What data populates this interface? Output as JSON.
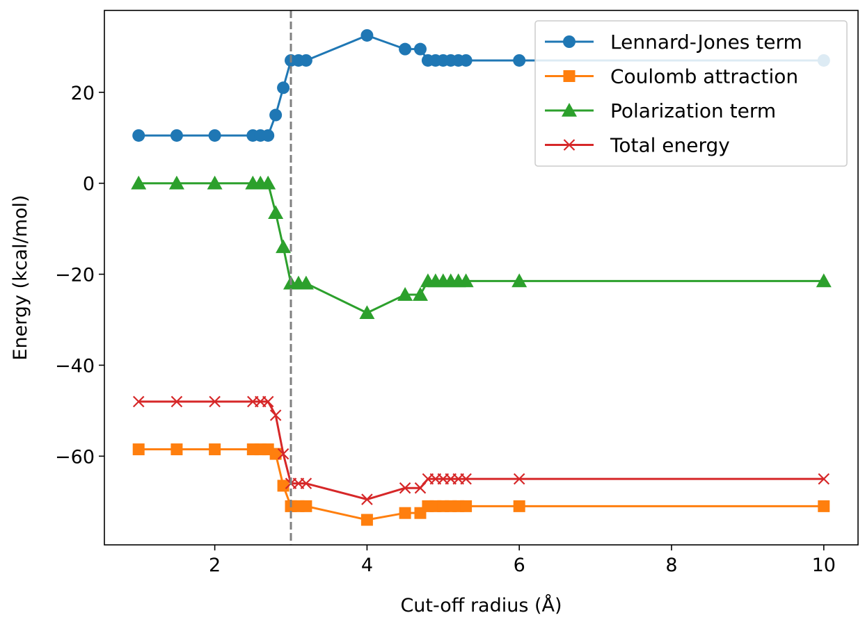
{
  "chart_data": {
    "type": "line",
    "xlabel": "Cut-off radius (Å)",
    "ylabel": "Energy (kcal/mol)",
    "xlim": [
      0.55,
      10.45
    ],
    "ylim": [
      -79.5,
      38
    ],
    "xticks": [
      2,
      4,
      6,
      8,
      10
    ],
    "yticks": [
      -60,
      -40,
      -20,
      0,
      20
    ],
    "xtick_labels": [
      "2",
      "4",
      "6",
      "8",
      "10"
    ],
    "ytick_labels": [
      "−60",
      "−40",
      "−20",
      "0",
      "20"
    ],
    "grid": false,
    "legend_position": "top-right",
    "reference_line": {
      "x": 3.0,
      "style": "dashed",
      "color": "#808080"
    },
    "x": [
      1.0,
      1.5,
      2.0,
      2.5,
      2.6,
      2.7,
      2.8,
      2.9,
      3.0,
      3.1,
      3.2,
      4.0,
      4.5,
      4.7,
      4.8,
      4.9,
      5.0,
      5.1,
      5.2,
      5.3,
      6.0,
      10.0
    ],
    "series": [
      {
        "name": "Lennard-Jones term",
        "color": "#1f77b4",
        "marker": "circle",
        "values": [
          10.5,
          10.5,
          10.5,
          10.5,
          10.5,
          10.5,
          15.0,
          21.0,
          27.0,
          27.0,
          27.0,
          32.5,
          29.5,
          29.5,
          27.0,
          27.0,
          27.0,
          27.0,
          27.0,
          27.0,
          27.0,
          27.0
        ]
      },
      {
        "name": "Coulomb attraction",
        "color": "#ff7f0e",
        "marker": "square",
        "values": [
          -58.5,
          -58.5,
          -58.5,
          -58.5,
          -58.5,
          -58.5,
          -59.5,
          -66.5,
          -71.0,
          -71.0,
          -71.0,
          -74.0,
          -72.5,
          -72.5,
          -71.0,
          -71.0,
          -71.0,
          -71.0,
          -71.0,
          -71.0,
          -71.0,
          -71.0
        ]
      },
      {
        "name": "Polarization term",
        "color": "#2ca02c",
        "marker": "triangle",
        "values": [
          0.0,
          0.0,
          0.0,
          0.0,
          0.0,
          0.0,
          -6.5,
          -14.0,
          -22.0,
          -22.0,
          -22.0,
          -28.5,
          -24.5,
          -24.5,
          -21.5,
          -21.5,
          -21.5,
          -21.5,
          -21.5,
          -21.5,
          -21.5,
          -21.5
        ]
      },
      {
        "name": "Total energy",
        "color": "#d62728",
        "marker": "x",
        "values": [
          -48.0,
          -48.0,
          -48.0,
          -48.0,
          -48.0,
          -48.0,
          -51.0,
          -59.5,
          -66.0,
          -66.0,
          -66.0,
          -69.5,
          -67.0,
          -67.0,
          -65.0,
          -65.0,
          -65.0,
          -65.0,
          -65.0,
          -65.0,
          -65.0,
          -65.0
        ]
      }
    ]
  }
}
